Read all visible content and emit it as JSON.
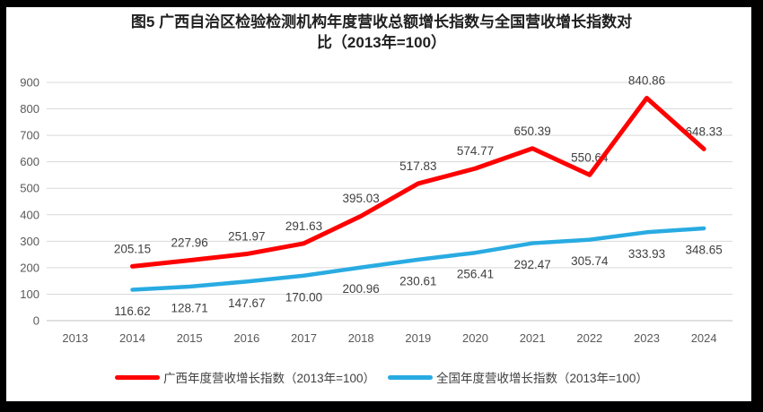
{
  "title": {
    "line1": "图5  广西自治区检验检测机构年度营收总额增长指数与全国营收增长指数对",
    "line2": "比（2013年=100）"
  },
  "chart_data": {
    "type": "line",
    "title": "图5 广西自治区检验检测机构年度营收总额增长指数与全国营收增长指数对比（2013年=100）",
    "categories": [
      "2013",
      "2014",
      "2015",
      "2016",
      "2017",
      "2018",
      "2019",
      "2020",
      "2021",
      "2022",
      "2023",
      "2024"
    ],
    "series": [
      {
        "name": "广西年度营收增长指数（2013年=100）",
        "color": "#FF0000",
        "label_position": "above",
        "values": [
          null,
          205.15,
          227.96,
          251.97,
          291.63,
          395.03,
          517.83,
          574.77,
          650.39,
          550.64,
          840.86,
          648.33
        ],
        "labels": [
          "",
          "205.15",
          "227.96",
          "251.97",
          "291.63",
          "395.03",
          "517.83",
          "574.77",
          "650.39",
          "550.64",
          "840.86",
          "648.33"
        ]
      },
      {
        "name": "全国年度营收增长指数（2013年=100）",
        "color": "#29ABE2",
        "label_position": "below",
        "values": [
          null,
          116.62,
          128.71,
          147.67,
          170.0,
          200.96,
          230.61,
          256.41,
          292.47,
          305.74,
          333.93,
          348.65
        ],
        "labels": [
          "",
          "116.62",
          "128.71",
          "147.67",
          "170.00",
          "200.96",
          "230.61",
          "256.41",
          "292.47",
          "305.74",
          "333.93",
          "348.65"
        ]
      }
    ],
    "ylim": [
      0,
      900
    ],
    "ytick_step": 100,
    "grid": true,
    "legend_position": "bottom",
    "colors": {
      "gridline": "#D9D9D9",
      "axis_line": "#BFBFBF",
      "tick_text": "#595959",
      "data_label_text": "#404040",
      "frame": "#000000"
    }
  }
}
